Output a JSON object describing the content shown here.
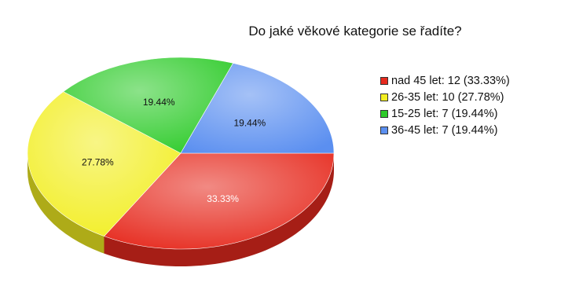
{
  "chart_data": {
    "type": "pie",
    "title": "Do jaké věkové kategorie se řadíte?",
    "slices": [
      {
        "label": "nad 45 let",
        "value": 12,
        "percent_label": "33.33%",
        "legend": "nad 45 let: 12 (33.33%)",
        "color": "#e62a1e",
        "label_color": "#ffffff"
      },
      {
        "label": "26-35 let",
        "value": 10,
        "percent_label": "27.78%",
        "legend": "26-35 let: 10 (27.78%)",
        "color": "#f2ee22",
        "label_color": "#111111"
      },
      {
        "label": "15-25 let",
        "value": 7,
        "percent_label": "19.44%",
        "legend": "15-25 let: 7 (19.44%)",
        "color": "#2ecb2a",
        "label_color": "#111111"
      },
      {
        "label": "36-45 let",
        "value": 7,
        "percent_label": "19.44%",
        "legend": "36-45 let: 7 (19.44%)",
        "color": "#5b8ff0",
        "label_color": "#111111"
      }
    ],
    "legend_position": "right"
  }
}
